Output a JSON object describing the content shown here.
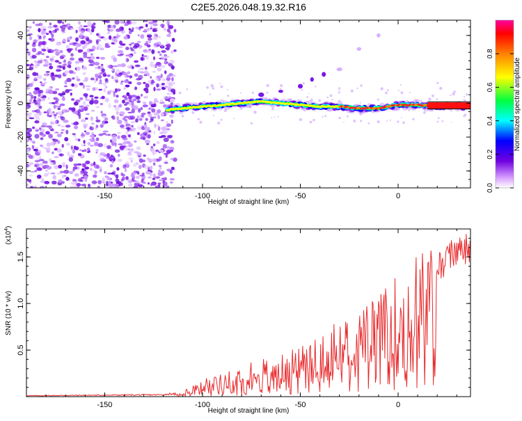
{
  "title": "C2E5.2026.048.19.32.R16",
  "colors": {
    "snr_line": "#e8282a",
    "axis": "#000000",
    "freq_scatter": "#7a18e6"
  },
  "chart_data": [
    {
      "type": "heatmap",
      "name": "spectrogram",
      "xlabel": "Height of straight line (km)",
      "ylabel": "Frequency (Hz)",
      "xlim": [
        -190,
        37
      ],
      "ylim": [
        -50,
        49
      ],
      "x_ticks": [
        -150,
        -100,
        -50,
        0
      ],
      "y_ticks": [
        -40,
        -20,
        0,
        20,
        40
      ],
      "x_tick_labels": [
        "-150",
        "-100",
        "-50",
        "0"
      ],
      "y_tick_labels": [
        "-40",
        "-20",
        "0",
        "20",
        "40"
      ],
      "noise_region": [
        -190,
        -118
      ],
      "signal_track": {
        "x": [
          -118,
          -110,
          -100,
          -90,
          -80,
          -70,
          -60,
          -50,
          -40,
          -30,
          -20,
          -10,
          0,
          10,
          20,
          37
        ],
        "freq_hz": [
          -4,
          -3,
          -2,
          -1,
          0,
          1,
          0,
          -1,
          -2,
          -2,
          -3,
          -3,
          -1,
          -1,
          -2,
          -2
        ]
      },
      "secondary_branch": {
        "x": [
          -70,
          -60,
          -50,
          -44,
          -38,
          -30,
          -20,
          -10
        ],
        "freq_hz": [
          5,
          7,
          10,
          14,
          17,
          20,
          32,
          40
        ]
      },
      "colorbar": {
        "label": "Normalized spectral amplitude",
        "range": [
          0,
          1
        ],
        "ticks": [
          0.0,
          0.2,
          0.4,
          0.6,
          0.8
        ],
        "tick_labels": [
          "0.0",
          "0.2",
          "0.4",
          "0.6",
          "0.8"
        ]
      }
    },
    {
      "type": "line",
      "name": "snr",
      "xlabel": "Height of straight line (km)",
      "ylabel": "SNR (10 * v/v)",
      "multiplier": "(x10",
      "multiplier_exp": "4",
      "multiplier_close": ")",
      "xlim": [
        -190,
        37
      ],
      "ylim": [
        0,
        1.8
      ],
      "x_ticks": [
        -150,
        -100,
        -50,
        0
      ],
      "y_ticks": [
        0.5,
        1.0,
        1.5
      ],
      "x_tick_labels": [
        "-150",
        "-100",
        "-50",
        "0"
      ],
      "y_tick_labels": [
        "0.5",
        "1.0",
        "1.5"
      ],
      "envelope_x": [
        -190,
        -120,
        -110,
        -100,
        -90,
        -80,
        -70,
        -60,
        -50,
        -40,
        -30,
        -20,
        -10,
        0,
        10,
        20,
        30,
        37
      ],
      "envelope_y": [
        0.01,
        0.02,
        0.05,
        0.15,
        0.25,
        0.3,
        0.35,
        0.4,
        0.5,
        0.6,
        0.72,
        0.8,
        0.95,
        1.15,
        1.35,
        1.5,
        1.7,
        1.76
      ]
    }
  ]
}
